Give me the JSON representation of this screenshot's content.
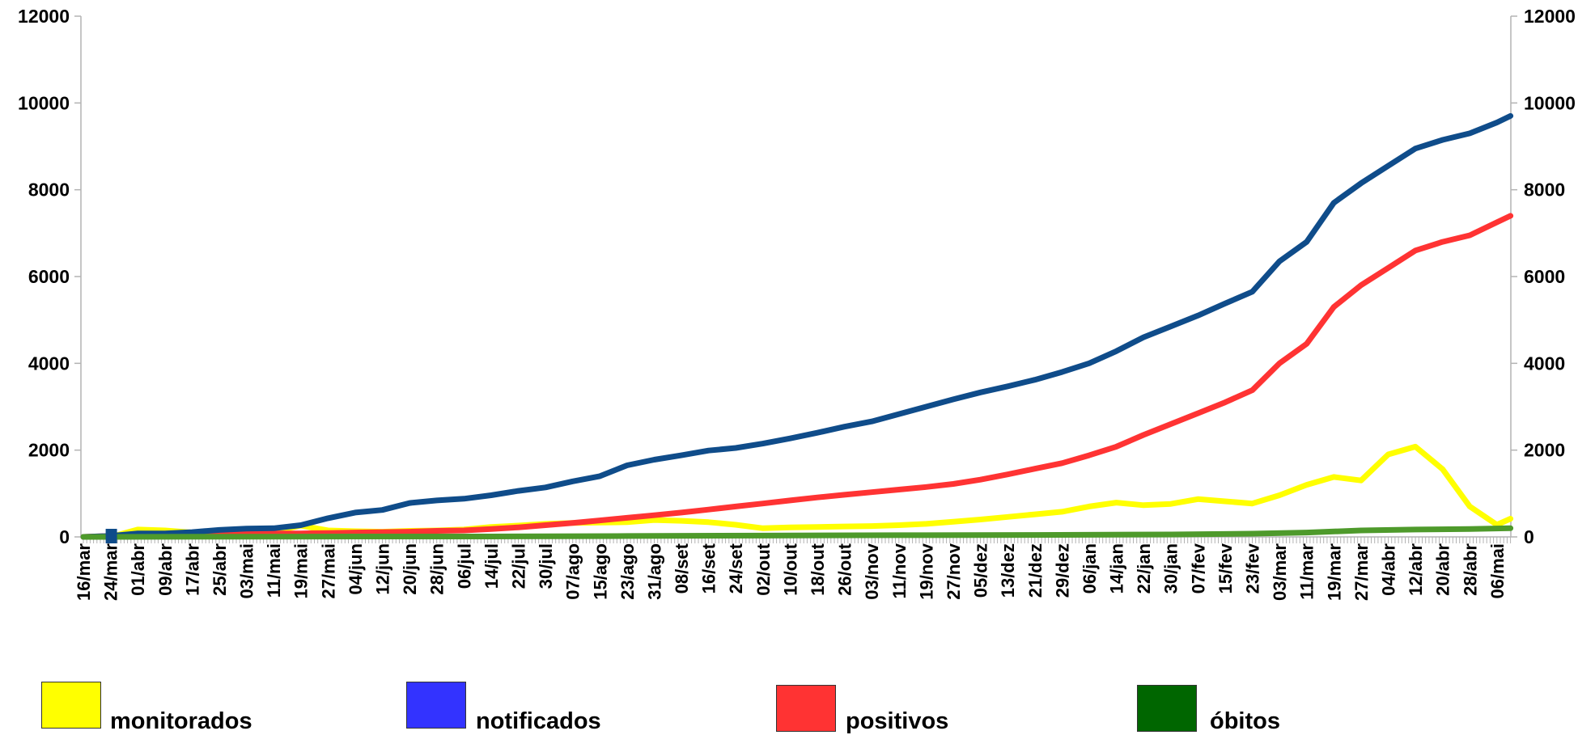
{
  "chart_data": {
    "type": "line",
    "title": "",
    "xlabel": "",
    "ylabel": "",
    "ylim": [
      0,
      12000
    ],
    "y_ticks": [
      0,
      2000,
      4000,
      6000,
      8000,
      10000,
      12000
    ],
    "y_ticks_right": [
      0,
      2000,
      4000,
      6000,
      8000,
      10000,
      12000
    ],
    "secondary_y_axis": true,
    "grid": false,
    "legend_position": "bottom",
    "x_tick_labels": [
      "16/mar",
      "24/mar",
      "01/abr",
      "09/abr",
      "17/abr",
      "25/abr",
      "03/mai",
      "11/mai",
      "19/mai",
      "27/mai",
      "04/jun",
      "12/jun",
      "20/jun",
      "28/jun",
      "06/jul",
      "14/jul",
      "22/jul",
      "30/jul",
      "07/ago",
      "15/ago",
      "23/ago",
      "31/ago",
      "08/set",
      "16/set",
      "24/set",
      "02/out",
      "10/out",
      "18/out",
      "26/out",
      "03/nov",
      "11/nov",
      "19/nov",
      "27/nov",
      "05/dez",
      "13/dez",
      "21/dez",
      "29/dez",
      "06/jan",
      "14/jan",
      "22/jan",
      "30/jan",
      "07/fev",
      "15/fev",
      "23/fev",
      "03/mar",
      "11/mar",
      "19/mar",
      "27/mar",
      "04/abr",
      "12/abr",
      "20/abr",
      "28/abr",
      "06/mai"
    ],
    "series": [
      {
        "name": "monitorados",
        "color": "#FFFF00",
        "points": [
          [
            0,
            0
          ],
          [
            1,
            0
          ],
          [
            2,
            170
          ],
          [
            3,
            150
          ],
          [
            4,
            100
          ],
          [
            5,
            90
          ],
          [
            6,
            140
          ],
          [
            7,
            120
          ],
          [
            8,
            260
          ],
          [
            9,
            150
          ],
          [
            10,
            130
          ],
          [
            11,
            120
          ],
          [
            12,
            140
          ],
          [
            13,
            150
          ],
          [
            14,
            170
          ],
          [
            15,
            230
          ],
          [
            16,
            260
          ],
          [
            17,
            300
          ],
          [
            18,
            320
          ],
          [
            19,
            330
          ],
          [
            20,
            340
          ],
          [
            21,
            390
          ],
          [
            22,
            370
          ],
          [
            23,
            340
          ],
          [
            24,
            280
          ],
          [
            25,
            200
          ],
          [
            26,
            220
          ],
          [
            27,
            230
          ],
          [
            28,
            240
          ],
          [
            29,
            250
          ],
          [
            30,
            270
          ],
          [
            31,
            300
          ],
          [
            32,
            350
          ],
          [
            33,
            400
          ],
          [
            34,
            460
          ],
          [
            35,
            520
          ],
          [
            36,
            580
          ],
          [
            37,
            700
          ],
          [
            38,
            790
          ],
          [
            39,
            730
          ],
          [
            40,
            760
          ],
          [
            41,
            870
          ],
          [
            42,
            820
          ],
          [
            43,
            770
          ],
          [
            44,
            960
          ],
          [
            45,
            1200
          ],
          [
            46,
            1380
          ],
          [
            47,
            1300
          ],
          [
            48,
            1900
          ],
          [
            49,
            2080
          ],
          [
            50,
            1560
          ],
          [
            51,
            700
          ],
          [
            52,
            280
          ],
          [
            52.5,
            420
          ]
        ]
      },
      {
        "name": "notificados",
        "color": "#0F4C8A",
        "points": [
          [
            0,
            0
          ],
          [
            1,
            20
          ],
          [
            2,
            80
          ],
          [
            3,
            80
          ],
          [
            4,
            110
          ],
          [
            5,
            160
          ],
          [
            6,
            190
          ],
          [
            7,
            200
          ],
          [
            8,
            270
          ],
          [
            9,
            430
          ],
          [
            10,
            560
          ],
          [
            11,
            620
          ],
          [
            12,
            780
          ],
          [
            13,
            840
          ],
          [
            14,
            880
          ],
          [
            15,
            960
          ],
          [
            16,
            1060
          ],
          [
            17,
            1140
          ],
          [
            18,
            1280
          ],
          [
            19,
            1400
          ],
          [
            20,
            1650
          ],
          [
            21,
            1780
          ],
          [
            22,
            1880
          ],
          [
            23,
            1990
          ],
          [
            24,
            2050
          ],
          [
            25,
            2150
          ],
          [
            26,
            2270
          ],
          [
            27,
            2400
          ],
          [
            28,
            2540
          ],
          [
            29,
            2660
          ],
          [
            30,
            2830
          ],
          [
            31,
            3000
          ],
          [
            32,
            3170
          ],
          [
            33,
            3330
          ],
          [
            34,
            3470
          ],
          [
            35,
            3620
          ],
          [
            36,
            3800
          ],
          [
            37,
            4000
          ],
          [
            38,
            4280
          ],
          [
            39,
            4600
          ],
          [
            40,
            4850
          ],
          [
            41,
            5100
          ],
          [
            42,
            5380
          ],
          [
            43,
            5650
          ],
          [
            44,
            6350
          ],
          [
            45,
            6800
          ],
          [
            46,
            7700
          ],
          [
            47,
            8150
          ],
          [
            48,
            8550
          ],
          [
            49,
            8950
          ],
          [
            50,
            9150
          ],
          [
            51,
            9300
          ],
          [
            52,
            9550
          ],
          [
            52.5,
            9700
          ]
        ]
      },
      {
        "name": "positivos",
        "color": "#FF3333",
        "points": [
          [
            0,
            0
          ],
          [
            1,
            20
          ],
          [
            2,
            50
          ],
          [
            3,
            50
          ],
          [
            4,
            50
          ],
          [
            5,
            60
          ],
          [
            6,
            70
          ],
          [
            7,
            80
          ],
          [
            8,
            80
          ],
          [
            9,
            90
          ],
          [
            10,
            100
          ],
          [
            11,
            110
          ],
          [
            12,
            120
          ],
          [
            13,
            140
          ],
          [
            14,
            150
          ],
          [
            15,
            180
          ],
          [
            16,
            220
          ],
          [
            17,
            270
          ],
          [
            18,
            320
          ],
          [
            19,
            380
          ],
          [
            20,
            440
          ],
          [
            21,
            500
          ],
          [
            22,
            560
          ],
          [
            23,
            630
          ],
          [
            24,
            700
          ],
          [
            25,
            770
          ],
          [
            26,
            840
          ],
          [
            27,
            910
          ],
          [
            28,
            970
          ],
          [
            29,
            1030
          ],
          [
            30,
            1090
          ],
          [
            31,
            1150
          ],
          [
            32,
            1220
          ],
          [
            33,
            1320
          ],
          [
            34,
            1440
          ],
          [
            35,
            1570
          ],
          [
            36,
            1700
          ],
          [
            37,
            1880
          ],
          [
            38,
            2080
          ],
          [
            39,
            2350
          ],
          [
            40,
            2600
          ],
          [
            41,
            2850
          ],
          [
            42,
            3100
          ],
          [
            43,
            3380
          ],
          [
            44,
            4000
          ],
          [
            45,
            4450
          ],
          [
            46,
            5300
          ],
          [
            47,
            5800
          ],
          [
            48,
            6200
          ],
          [
            49,
            6600
          ],
          [
            50,
            6800
          ],
          [
            51,
            6950
          ],
          [
            52,
            7250
          ],
          [
            52.5,
            7400
          ]
        ]
      },
      {
        "name": "óbitos",
        "color": "#4E9A2B",
        "points": [
          [
            0,
            0
          ],
          [
            5,
            5
          ],
          [
            10,
            10
          ],
          [
            15,
            10
          ],
          [
            20,
            20
          ],
          [
            25,
            30
          ],
          [
            30,
            40
          ],
          [
            35,
            45
          ],
          [
            40,
            55
          ],
          [
            43,
            75
          ],
          [
            45,
            100
          ],
          [
            47,
            150
          ],
          [
            49,
            170
          ],
          [
            51,
            180
          ],
          [
            52.5,
            200
          ]
        ]
      }
    ]
  },
  "legend": {
    "items": [
      {
        "label": "monitorados",
        "color": "#FFFF00"
      },
      {
        "label": "notificados",
        "color": "#3333FF"
      },
      {
        "label": "positivos",
        "color": "#FF3333"
      },
      {
        "label": "óbitos",
        "color": "#006600"
      }
    ]
  }
}
